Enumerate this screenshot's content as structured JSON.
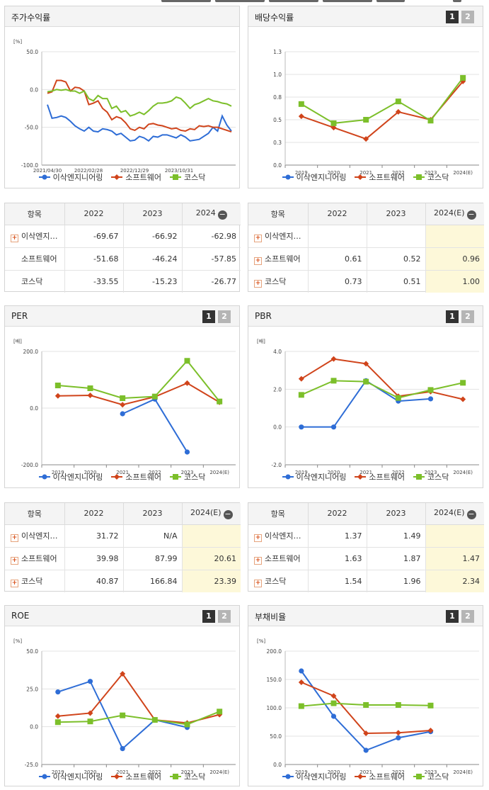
{
  "colors": {
    "company": "#2e6dd6",
    "software": "#d0441b",
    "kosdaq": "#7cbf2a",
    "highlight": "#fdf8d9"
  },
  "legend": [
    "이삭엔지니어링",
    "소프트웨어",
    "코스닥"
  ],
  "panels": {
    "stock": {
      "title": "주가수익률",
      "unit": "[%]"
    },
    "dividend": {
      "title": "배당수익률",
      "unit": "",
      "btn1": "1",
      "btn2": "2"
    },
    "per": {
      "title": "PER",
      "unit": "[배]",
      "btn1": "1",
      "btn2": "2"
    },
    "pbr": {
      "title": "PBR",
      "unit": "[배]",
      "btn1": "1",
      "btn2": "2"
    },
    "roe": {
      "title": "ROE",
      "unit": "[%]",
      "btn1": "1",
      "btn2": "2"
    },
    "debt": {
      "title": "부채비율",
      "unit": "[%]",
      "btn1": "1",
      "btn2": "2"
    }
  },
  "tables": {
    "stock": {
      "headers": [
        "항목",
        "2022",
        "2023",
        "2024"
      ],
      "rows": [
        {
          "label": "이삭엔지…",
          "plus": true,
          "values": [
            "-69.67",
            "-66.92",
            "-62.98"
          ]
        },
        {
          "label": "소프트웨어",
          "plus": false,
          "values": [
            "-51.68",
            "-46.24",
            "-57.85"
          ]
        },
        {
          "label": "코스닥",
          "plus": false,
          "values": [
            "-33.55",
            "-15.23",
            "-26.77"
          ]
        }
      ]
    },
    "dividend": {
      "headers": [
        "항목",
        "2022",
        "2023",
        "2024(E)"
      ],
      "rows": [
        {
          "label": "이삭엔지…",
          "plus": true,
          "values": [
            "",
            "",
            ""
          ]
        },
        {
          "label": "소프트웨어",
          "plus": true,
          "values": [
            "0.61",
            "0.52",
            "0.96"
          ]
        },
        {
          "label": "코스닥",
          "plus": true,
          "values": [
            "0.73",
            "0.51",
            "1.00"
          ]
        }
      ]
    },
    "per": {
      "headers": [
        "항목",
        "2022",
        "2023",
        "2024(E)"
      ],
      "rows": [
        {
          "label": "이삭엔지…",
          "plus": true,
          "values": [
            "31.72",
            "N/A",
            ""
          ]
        },
        {
          "label": "소프트웨어",
          "plus": true,
          "values": [
            "39.98",
            "87.99",
            "20.61"
          ]
        },
        {
          "label": "코스닥",
          "plus": true,
          "values": [
            "40.87",
            "166.84",
            "23.39"
          ]
        }
      ]
    },
    "pbr": {
      "headers": [
        "항목",
        "2022",
        "2023",
        "2024(E)"
      ],
      "rows": [
        {
          "label": "이삭엔지…",
          "plus": true,
          "values": [
            "1.37",
            "1.49",
            ""
          ]
        },
        {
          "label": "소프트웨어",
          "plus": true,
          "values": [
            "1.63",
            "1.87",
            "1.47"
          ]
        },
        {
          "label": "코스닥",
          "plus": true,
          "values": [
            "1.54",
            "1.96",
            "2.34"
          ]
        }
      ]
    }
  },
  "chart_data": [
    {
      "id": "stock",
      "type": "line",
      "title": "주가수익률",
      "ylim": [
        -100,
        50
      ],
      "yticks": [
        "50.0",
        "0.0",
        "-50.0",
        "-100.0"
      ],
      "ytick_values": [
        50,
        0,
        -50,
        -100
      ],
      "xlabels": [
        "2021/04/30",
        "2022/02/28",
        "2022/12/29",
        "2023/10/31"
      ],
      "series": [
        {
          "name": "이삭엔지니어링",
          "values": [
            -20,
            -38,
            -37,
            -35,
            -37,
            -42,
            -48,
            -52,
            -55,
            -50,
            -55,
            -56,
            -52,
            -53,
            -55,
            -60,
            -58,
            -63,
            -68,
            -67,
            -62,
            -64,
            -68,
            -62,
            -63,
            -60,
            -60,
            -62,
            -64,
            -60,
            -63,
            -68,
            -67,
            -66,
            -62,
            -58,
            -50,
            -55,
            -35,
            -47,
            -55
          ]
        },
        {
          "name": "소프트웨어",
          "values": [
            -5,
            -3,
            12,
            12,
            10,
            -2,
            3,
            2,
            -2,
            -20,
            -18,
            -15,
            -25,
            -30,
            -40,
            -36,
            -38,
            -44,
            -52,
            -54,
            -50,
            -52,
            -46,
            -45,
            -47,
            -48,
            -50,
            -52,
            -51,
            -54,
            -55,
            -52,
            -53,
            -48,
            -49,
            -48,
            -50,
            -50,
            -52,
            -54,
            -56
          ]
        },
        {
          "name": "코스닥",
          "values": [
            -3,
            -2,
            0,
            -1,
            0,
            -2,
            -2,
            -5,
            -2,
            -12,
            -15,
            -8,
            -12,
            -12,
            -25,
            -22,
            -30,
            -28,
            -35,
            -33,
            -30,
            -33,
            -28,
            -22,
            -18,
            -18,
            -17,
            -15,
            -10,
            -12,
            -18,
            -25,
            -20,
            -18,
            -15,
            -12,
            -15,
            -16,
            -18,
            -19,
            -22
          ]
        }
      ]
    },
    {
      "id": "dividend",
      "type": "line",
      "title": "배당수익률",
      "ylim": [
        0,
        1.3
      ],
      "yticks": [
        "1.3",
        "1.0",
        "0.8",
        "0.5",
        "0.3",
        "0.0"
      ],
      "ytick_values": [
        1.3,
        1.04,
        0.78,
        0.52,
        0.26,
        0
      ],
      "categories": [
        "2019",
        "2020",
        "2021",
        "2022",
        "2023",
        "2024(E)"
      ],
      "series": [
        {
          "name": "이삭엔지니어링",
          "values": [
            null,
            null,
            null,
            null,
            null,
            null
          ]
        },
        {
          "name": "소프트웨어",
          "values": [
            0.56,
            0.43,
            0.3,
            0.61,
            0.52,
            0.96
          ]
        },
        {
          "name": "코스닥",
          "values": [
            0.7,
            0.48,
            0.52,
            0.73,
            0.51,
            1.0
          ]
        }
      ]
    },
    {
      "id": "per",
      "type": "line",
      "title": "PER",
      "ylim": [
        -200,
        200
      ],
      "yticks": [
        "200.0",
        "0.0",
        "-200.0"
      ],
      "ytick_values": [
        200,
        0,
        -200
      ],
      "categories": [
        "2019",
        "2020",
        "2021",
        "2022",
        "2023",
        "2024(E)"
      ],
      "series": [
        {
          "name": "이삭엔지니어링",
          "values": [
            null,
            null,
            -20,
            31.72,
            -155,
            null
          ]
        },
        {
          "name": "소프트웨어",
          "values": [
            43,
            45,
            12,
            39.98,
            87.99,
            20.61
          ]
        },
        {
          "name": "코스닥",
          "values": [
            80,
            70,
            35,
            40.87,
            166.84,
            23.39
          ]
        }
      ]
    },
    {
      "id": "pbr",
      "type": "line",
      "title": "PBR",
      "ylim": [
        -2,
        4
      ],
      "yticks": [
        "4.0",
        "2.0",
        "0.0",
        "-2.0"
      ],
      "ytick_values": [
        4,
        2,
        0,
        -2
      ],
      "categories": [
        "2019",
        "2020",
        "2021",
        "2022",
        "2023",
        "2024(E)"
      ],
      "series": [
        {
          "name": "이삭엔지니어링",
          "values": [
            0,
            0,
            2.45,
            1.37,
            1.49,
            null
          ]
        },
        {
          "name": "소프트웨어",
          "values": [
            2.55,
            3.6,
            3.35,
            1.63,
            1.87,
            1.47
          ]
        },
        {
          "name": "코스닥",
          "values": [
            1.7,
            2.45,
            2.4,
            1.54,
            1.96,
            2.34
          ]
        }
      ]
    },
    {
      "id": "roe",
      "type": "line",
      "title": "ROE",
      "ylim": [
        -25,
        50
      ],
      "yticks": [
        "50.0",
        "25.0",
        "0.0",
        "-25.0"
      ],
      "ytick_values": [
        50,
        25,
        0,
        -25
      ],
      "categories": [
        "2019",
        "2020",
        "2021",
        "2022",
        "2023",
        "2024(E)"
      ],
      "series": [
        {
          "name": "이삭엔지니어링",
          "values": [
            23,
            30,
            -14.5,
            4.5,
            -0.5,
            null
          ]
        },
        {
          "name": "소프트웨어",
          "values": [
            7,
            9,
            35,
            4.5,
            2.5,
            8
          ]
        },
        {
          "name": "코스닥",
          "values": [
            3,
            3.5,
            7.5,
            4.5,
            1.5,
            10
          ]
        }
      ]
    },
    {
      "id": "debt",
      "type": "line",
      "title": "부채비율",
      "ylim": [
        0,
        200
      ],
      "yticks": [
        "200.0",
        "150.0",
        "100.0",
        "50.0",
        "0.0"
      ],
      "ytick_values": [
        200,
        150,
        100,
        50,
        0
      ],
      "categories": [
        "2019",
        "2020",
        "2021",
        "2022",
        "2023",
        "2024(E)"
      ],
      "series": [
        {
          "name": "이삭엔지니어링",
          "values": [
            165,
            85,
            25,
            47,
            58,
            null
          ]
        },
        {
          "name": "소프트웨어",
          "values": [
            145,
            121,
            55,
            56,
            60,
            null
          ]
        },
        {
          "name": "코스닥",
          "values": [
            103,
            108,
            105,
            105,
            104,
            null
          ]
        }
      ]
    }
  ]
}
